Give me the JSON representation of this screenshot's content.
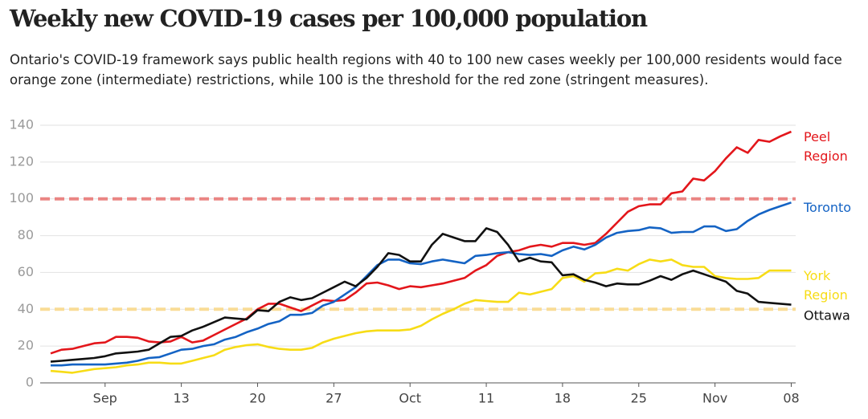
{
  "chart_data": {
    "type": "line",
    "title": "Weekly new COVID-19 cases per 100,000 population",
    "subtitle": "Ontario's COVID-19 framework says public health regions with 40 to 100 new cases weekly per 100,000 residents would face orange zone (intermediate) restrictions, while 100 is the threshold for the red zone (stringent measures).",
    "x": [
      "Sep 1",
      "Sep 2",
      "Sep 3",
      "Sep 4",
      "Sep 5",
      "Sep 6",
      "Sep 7",
      "Sep 8",
      "Sep 9",
      "Sep 10",
      "Sep 11",
      "Sep 12",
      "Sep 13",
      "Sep 14",
      "Sep 15",
      "Sep 16",
      "Sep 17",
      "Sep 18",
      "Sep 19",
      "Sep 20",
      "Sep 21",
      "Sep 22",
      "Sep 23",
      "Sep 24",
      "Sep 25",
      "Sep 26",
      "Sep 27",
      "Sep 28",
      "Sep 29",
      "Sep 30",
      "Oct 1",
      "Oct 2",
      "Oct 3",
      "Oct 4",
      "Oct 5",
      "Oct 6",
      "Oct 7",
      "Oct 8",
      "Oct 9",
      "Oct 10",
      "Oct 11",
      "Oct 12",
      "Oct 13",
      "Oct 14",
      "Oct 15",
      "Oct 16",
      "Oct 17",
      "Oct 18",
      "Oct 19",
      "Oct 20",
      "Oct 21",
      "Oct 22",
      "Oct 23",
      "Oct 24",
      "Oct 25",
      "Oct 26",
      "Oct 27",
      "Oct 28",
      "Oct 29",
      "Oct 30",
      "Oct 31",
      "Nov 1",
      "Nov 2",
      "Nov 3",
      "Nov 4",
      "Nov 5",
      "Nov 6",
      "Nov 7",
      "Nov 8"
    ],
    "xticks": [
      {
        "value": "Sep 6",
        "label": "Sep"
      },
      {
        "value": "Sep 13",
        "label": "13"
      },
      {
        "value": "Sep 20",
        "label": "20"
      },
      {
        "value": "Sep 27",
        "label": "27"
      },
      {
        "value": "Oct 4",
        "label": "Oct"
      },
      {
        "value": "Oct 11",
        "label": "11"
      },
      {
        "value": "Oct 18",
        "label": "18"
      },
      {
        "value": "Oct 25",
        "label": "25"
      },
      {
        "value": "Nov 1",
        "label": "Nov"
      },
      {
        "value": "Nov 8",
        "label": "08"
      }
    ],
    "ylim": [
      0,
      140
    ],
    "yticks": [
      0,
      20,
      40,
      60,
      80,
      100,
      120,
      140
    ],
    "grid": true,
    "reference_lines": [
      {
        "value": 100,
        "color": "#ea8583"
      },
      {
        "value": 40,
        "color": "#f9dc95"
      }
    ],
    "series": [
      {
        "name": "Peel Region",
        "color": "#e3161b",
        "values": [
          16,
          18,
          18.5,
          20,
          21.5,
          22,
          25,
          25,
          24.5,
          22.5,
          22,
          22.5,
          25,
          22,
          23,
          26,
          29,
          32,
          35,
          40,
          43,
          43,
          41,
          39,
          42,
          45,
          44.5,
          45,
          49,
          54,
          54.5,
          53,
          51,
          52.5,
          52,
          53,
          54,
          55.5,
          57,
          61,
          64,
          69,
          71,
          72,
          74,
          75,
          74,
          76,
          76,
          75,
          76,
          81,
          87,
          93,
          96,
          97,
          97,
          103,
          104,
          111,
          110,
          115,
          122,
          128,
          125,
          132,
          131,
          134,
          136.5
        ]
      },
      {
        "name": "Toronto",
        "color": "#1463c4",
        "values": [
          9.5,
          9.5,
          10,
          10,
          10,
          10,
          10.5,
          11,
          12,
          13.5,
          14,
          16,
          18,
          18.5,
          20,
          21,
          23.5,
          25,
          27.5,
          29.5,
          32,
          33.5,
          37,
          37,
          38,
          42,
          44,
          48,
          52,
          58,
          64,
          67,
          67,
          65,
          64.5,
          66,
          67,
          66,
          65,
          69,
          69.5,
          70.5,
          71,
          70,
          69.5,
          70,
          69,
          72,
          74,
          72.5,
          75,
          79,
          81.5,
          82.5,
          83,
          84.5,
          84,
          81.5,
          82,
          82,
          85,
          85,
          82.5,
          83.5,
          88,
          91.5,
          94,
          96,
          98
        ]
      },
      {
        "name": "York Region",
        "color": "#f7dc16",
        "values": [
          6.5,
          6,
          5.5,
          6.5,
          7.5,
          8,
          8.5,
          9.5,
          10,
          11,
          11,
          10.5,
          10.5,
          12,
          13.5,
          15,
          18,
          19.5,
          20.5,
          21,
          19.5,
          18.5,
          18,
          18,
          19,
          22,
          24,
          25.5,
          27,
          28,
          28.5,
          28.5,
          28.5,
          29,
          31,
          34.5,
          37.5,
          40,
          43,
          45,
          44.5,
          44,
          44,
          49,
          48,
          49.5,
          51,
          57,
          58,
          55,
          59.5,
          60,
          62,
          61,
          64.5,
          67,
          66,
          67,
          64,
          63,
          63,
          58,
          57,
          56.5,
          56.5,
          57,
          61,
          61,
          61
        ]
      },
      {
        "name": "Ottawa",
        "color": "#111111",
        "values": [
          11.5,
          12,
          12.5,
          13,
          13.5,
          14.5,
          16,
          16.5,
          17,
          18,
          21.5,
          25,
          25.5,
          28.5,
          30.5,
          33,
          35.5,
          35,
          34.5,
          39.5,
          39,
          44,
          46.5,
          45,
          46,
          49,
          52,
          55,
          52.5,
          57,
          63,
          70.5,
          69.5,
          66,
          66,
          75,
          81,
          79,
          77,
          77,
          84,
          82,
          75,
          66,
          68,
          66,
          65.5,
          58.5,
          59,
          56,
          54.5,
          52.5,
          54,
          53.5,
          53.5,
          55.5,
          58,
          56,
          59,
          61,
          59,
          57,
          55,
          50,
          48.5,
          44,
          43.5,
          43,
          42.5
        ]
      }
    ]
  }
}
